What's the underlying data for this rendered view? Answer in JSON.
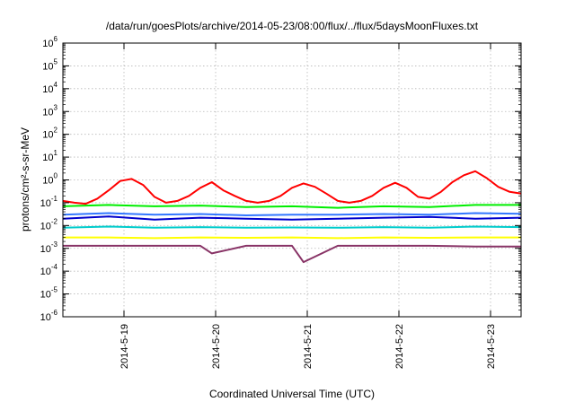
{
  "chart_data": {
    "type": "line",
    "title": "/data/run/goesPlots/archive/2014-05-23/08:00/flux/../flux/5daysMoonFluxes.txt",
    "xlabel": "Coordinated Universal Time (UTC)",
    "ylabel": "protons/cm²-s-sr-MeV",
    "y_scale": "log",
    "ylim": [
      1e-06,
      1000000.0
    ],
    "y_ticks": [
      {
        "label": "10",
        "sup": "-6",
        "value": 1e-06
      },
      {
        "label": "10",
        "sup": "-5",
        "value": 1e-05
      },
      {
        "label": "10",
        "sup": "-4",
        "value": 0.0001
      },
      {
        "label": "10",
        "sup": "-3",
        "value": 0.001
      },
      {
        "label": "10",
        "sup": "-2",
        "value": 0.01
      },
      {
        "label": "10",
        "sup": "-1",
        "value": 0.1
      },
      {
        "label": "10",
        "sup": "0",
        "value": 1
      },
      {
        "label": "10",
        "sup": "1",
        "value": 10
      },
      {
        "label": "10",
        "sup": "2",
        "value": 100
      },
      {
        "label": "10",
        "sup": "3",
        "value": 1000
      },
      {
        "label": "10",
        "sup": "4",
        "value": 10000
      },
      {
        "label": "10",
        "sup": "5",
        "value": 100000
      },
      {
        "label": "10",
        "sup": "6",
        "value": 1000000
      }
    ],
    "xlim": [
      "2014-05-18T08:00",
      "2014-05-23T08:00"
    ],
    "x_ticks": [
      {
        "label": "2014-5-19",
        "value": "2014-05-19T00:00"
      },
      {
        "label": "2014-5-20",
        "value": "2014-05-20T00:00"
      },
      {
        "label": "2014-5-21",
        "value": "2014-05-21T00:00"
      },
      {
        "label": "2014-5-22",
        "value": "2014-05-22T00:00"
      },
      {
        "label": "2014-5-23",
        "value": "2014-05-23T00:00"
      }
    ],
    "grid": true,
    "legend": "none",
    "series": [
      {
        "color": "#ff0000",
        "x": [
          "2014-05-18T08:00",
          "2014-05-18T11:00",
          "2014-05-18T14:00",
          "2014-05-18T17:00",
          "2014-05-18T20:00",
          "2014-05-18T23:00",
          "2014-05-19T02:00",
          "2014-05-19T05:00",
          "2014-05-19T08:00",
          "2014-05-19T11:00",
          "2014-05-19T14:00",
          "2014-05-19T17:00",
          "2014-05-19T20:00",
          "2014-05-19T23:00",
          "2014-05-20T02:00",
          "2014-05-20T05:00",
          "2014-05-20T08:00",
          "2014-05-20T11:00",
          "2014-05-20T14:00",
          "2014-05-20T17:00",
          "2014-05-20T20:00",
          "2014-05-20T23:00",
          "2014-05-21T02:00",
          "2014-05-21T05:00",
          "2014-05-21T08:00",
          "2014-05-21T11:00",
          "2014-05-21T14:00",
          "2014-05-21T17:00",
          "2014-05-21T20:00",
          "2014-05-21T23:00",
          "2014-05-22T02:00",
          "2014-05-22T05:00",
          "2014-05-22T08:00",
          "2014-05-22T11:00",
          "2014-05-22T14:00",
          "2014-05-22T17:00",
          "2014-05-22T20:00",
          "2014-05-22T23:00",
          "2014-05-23T02:00",
          "2014-05-23T05:00",
          "2014-05-23T08:00"
        ],
        "y": [
          0.12,
          0.1,
          0.09,
          0.15,
          0.35,
          0.9,
          1.1,
          0.6,
          0.18,
          0.1,
          0.12,
          0.2,
          0.45,
          0.8,
          0.35,
          0.2,
          0.12,
          0.1,
          0.12,
          0.2,
          0.45,
          0.7,
          0.5,
          0.25,
          0.12,
          0.1,
          0.12,
          0.2,
          0.45,
          0.75,
          0.45,
          0.18,
          0.15,
          0.3,
          0.8,
          1.6,
          2.4,
          1.2,
          0.5,
          0.3,
          0.25
        ]
      },
      {
        "color": "#00ee00",
        "x": [
          "2014-05-18T08:00",
          "2014-05-18T20:00",
          "2014-05-19T08:00",
          "2014-05-19T20:00",
          "2014-05-20T08:00",
          "2014-05-20T20:00",
          "2014-05-21T08:00",
          "2014-05-21T20:00",
          "2014-05-22T08:00",
          "2014-05-22T20:00",
          "2014-05-23T08:00"
        ],
        "y": [
          0.07,
          0.08,
          0.07,
          0.075,
          0.065,
          0.07,
          0.06,
          0.07,
          0.065,
          0.08,
          0.08
        ]
      },
      {
        "color": "#0000cc",
        "x": [
          "2014-05-18T08:00",
          "2014-05-18T20:00",
          "2014-05-19T08:00",
          "2014-05-19T20:00",
          "2014-05-20T08:00",
          "2014-05-20T20:00",
          "2014-05-21T08:00",
          "2014-05-21T20:00",
          "2014-05-22T08:00",
          "2014-05-22T20:00",
          "2014-05-23T08:00"
        ],
        "y": [
          0.02,
          0.025,
          0.018,
          0.022,
          0.02,
          0.018,
          0.02,
          0.022,
          0.024,
          0.02,
          0.022
        ]
      },
      {
        "color": "#3377ff",
        "x": [
          "2014-05-18T08:00",
          "2014-05-18T20:00",
          "2014-05-19T08:00",
          "2014-05-19T20:00",
          "2014-05-20T08:00",
          "2014-05-20T20:00",
          "2014-05-21T08:00",
          "2014-05-21T20:00",
          "2014-05-22T08:00",
          "2014-05-22T20:00",
          "2014-05-23T08:00"
        ],
        "y": [
          0.03,
          0.035,
          0.03,
          0.032,
          0.028,
          0.03,
          0.03,
          0.032,
          0.03,
          0.035,
          0.033
        ]
      },
      {
        "color": "#00cccc",
        "x": [
          "2014-05-18T08:00",
          "2014-05-18T20:00",
          "2014-05-19T08:00",
          "2014-05-19T20:00",
          "2014-05-20T08:00",
          "2014-05-20T20:00",
          "2014-05-21T08:00",
          "2014-05-21T20:00",
          "2014-05-22T08:00",
          "2014-05-22T20:00",
          "2014-05-23T08:00"
        ],
        "y": [
          0.008,
          0.009,
          0.008,
          0.0085,
          0.008,
          0.0082,
          0.008,
          0.0085,
          0.008,
          0.009,
          0.0085
        ]
      },
      {
        "color": "#ffff00",
        "x": [
          "2014-05-18T08:00",
          "2014-05-18T20:00",
          "2014-05-19T08:00",
          "2014-05-19T20:00",
          "2014-05-20T08:00",
          "2014-05-20T20:00",
          "2014-05-21T08:00",
          "2014-05-21T20:00",
          "2014-05-22T08:00",
          "2014-05-22T20:00",
          "2014-05-23T08:00"
        ],
        "y": [
          0.003,
          0.003,
          0.0028,
          0.003,
          0.0029,
          0.003,
          0.0028,
          0.003,
          0.0029,
          0.003,
          0.003
        ]
      },
      {
        "color": "#883366",
        "x": [
          "2014-05-18T08:00",
          "2014-05-18T20:00",
          "2014-05-19T08:00",
          "2014-05-19T20:00",
          "2014-05-19T23:00",
          "2014-05-20T08:00",
          "2014-05-20T20:00",
          "2014-05-20T23:00",
          "2014-05-21T08:00",
          "2014-05-21T20:00",
          "2014-05-22T08:00",
          "2014-05-22T20:00",
          "2014-05-23T08:00"
        ],
        "y": [
          0.0013,
          0.0013,
          0.0013,
          0.0013,
          0.0006,
          0.0013,
          0.0013,
          0.00025,
          0.0013,
          0.0013,
          0.0013,
          0.0012,
          0.0012
        ]
      }
    ]
  }
}
